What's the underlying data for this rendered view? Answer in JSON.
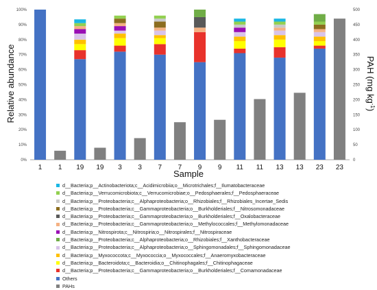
{
  "chart_data": {
    "type": "bar",
    "categories": [
      "1",
      "1",
      "19",
      "19",
      "3",
      "3",
      "7",
      "7",
      "9",
      "9",
      "11",
      "11",
      "13",
      "13",
      "23",
      "23"
    ],
    "xlabel": "Sample",
    "ylabel": "Relative  abundance",
    "y2label": "PAH (mg kg",
    "y2label_sup": "-1",
    "y2label_close": ")",
    "ylim": [
      0,
      100
    ],
    "y2lim": [
      0,
      500
    ],
    "yticks": [
      "0%",
      "10%",
      "20%",
      "30%",
      "40%",
      "50%",
      "60%",
      "70%",
      "80%",
      "90%",
      "100%"
    ],
    "y2ticks": [
      "0",
      "50",
      "100",
      "150",
      "200",
      "250",
      "300",
      "350",
      "400",
      "450",
      "500"
    ],
    "grid": false,
    "legend_position": "bottom",
    "stack_order_bottom_to_top": [
      "Others",
      "Comamonadaceae",
      "Chitinophagaceae",
      "Anaeromyxobacteraceae",
      "Sphingomonadaceae",
      "Nitrospiraceae",
      "Methylomonadaceae",
      "Oxalobacteraceae",
      "Nitrosomonadaceae",
      "Rhizobiales_Incertae_Sedis",
      "Pedosphaeraceae",
      "Ilumatobacteraceae",
      "Xanthobacteraceae"
    ],
    "series": [
      {
        "key": "Ilumatobacteraceae",
        "name": "d__Bacteria;p__Actinobacteriota;c__Acidimicrobiia;o__Microtrichales;f__Ilumatobacteraceae",
        "color": "#1BB7E4",
        "axis": "left",
        "values": [
          0,
          null,
          2.5,
          null,
          0,
          null,
          0,
          null,
          0,
          null,
          2.0,
          null,
          2.0,
          null,
          0,
          null
        ]
      },
      {
        "key": "Pedosphaeraceae",
        "name": "d__Bacteria;p__Verrucomicrobiota;c__Verrucomicrobiae;o__Pedosphaerales;f__Pedosphaeraceae",
        "color": "#92D050",
        "axis": "left",
        "values": [
          0,
          null,
          2.0,
          null,
          2.0,
          null,
          2.0,
          null,
          0,
          null,
          2.0,
          null,
          2.0,
          null,
          2.0,
          null
        ]
      },
      {
        "key": "Rhizobiales_Incertae_Sedis",
        "name": "d__Bacteria;p__Proteobacteria;c__Alphaproteobacteria;o__Rhizobiales;f__Rhizobiales_Incertae_Sedis",
        "color": "#C9C9C9",
        "axis": "left",
        "values": [
          0,
          null,
          0,
          null,
          0,
          null,
          2.0,
          null,
          0,
          null,
          2.0,
          null,
          2.0,
          null,
          0,
          null
        ]
      },
      {
        "key": "Nitrosomonadaceae",
        "name": "d__Bacteria;p__Proteobacteria;c__Gammaproteobacteria;o__Burkholderiales;f__Nitrosomonadaceae",
        "color": "#8C6D1F",
        "axis": "left",
        "values": [
          0,
          null,
          0,
          null,
          3.0,
          null,
          4.0,
          null,
          0,
          null,
          0,
          null,
          0,
          null,
          3.0,
          null
        ]
      },
      {
        "key": "Oxalobacteraceae",
        "name": "d__Bacteria;p__Proteobacteria;c__Gammaproteobacteria;o__Burkholderiales;f__Oxalobacteraceae",
        "color": "#595959",
        "axis": "left",
        "values": [
          0,
          null,
          0,
          null,
          0,
          null,
          0,
          null,
          7.0,
          null,
          0,
          null,
          0,
          null,
          0,
          null
        ]
      },
      {
        "key": "Methylomonadaceae",
        "name": "d__Bacteria;p__Proteobacteria;c__Gammaproteobacteria;o__Methylococcales;f__Methylomonadaceae",
        "color": "#F4B183",
        "axis": "left",
        "values": [
          0,
          null,
          2.0,
          null,
          2.0,
          null,
          2.0,
          null,
          3.0,
          null,
          0,
          null,
          2.0,
          null,
          2.0,
          null
        ]
      },
      {
        "key": "Nitrospiraceae",
        "name": "d__Bacteria;p__Nitrospirota;c__Nitrospiria;o__Nitrospirales;f__Nitrospiraceae",
        "color": "#9A0FB4",
        "axis": "left",
        "values": [
          0,
          null,
          3.0,
          null,
          3.0,
          null,
          0,
          null,
          0,
          null,
          3.0,
          null,
          0,
          null,
          0,
          null
        ]
      },
      {
        "key": "Xanthobacteraceae",
        "name": "d__Bacteria;p__Proteobacteria;c__Alphaproteobacteria;o__Rhizobiales;f__Xanthobacteraceae",
        "color": "#70AD47",
        "axis": "left",
        "values": [
          0,
          null,
          0,
          null,
          0,
          null,
          0,
          null,
          5.0,
          null,
          0,
          null,
          0,
          null,
          5.0,
          null
        ]
      },
      {
        "key": "Sphingomonadaceae",
        "name": "d__Bacteria;p__Proteobacteria;c__Alphaproteobacteria;o__Sphingomonadales;f__Sphingomonadaceae",
        "color": "#D9C3E9",
        "axis": "left",
        "values": [
          0,
          null,
          4.0,
          null,
          2.0,
          null,
          3.0,
          null,
          0,
          null,
          3.0,
          null,
          3.0,
          null,
          3.0,
          null
        ]
      },
      {
        "key": "Anaeromyxobacteraceae",
        "name": "d__Bacteria;p__Myxococcota;c__Myxococcia;o__Myxococcales;f__Anaeromyxobacteraceae",
        "color": "#FFC000",
        "axis": "left",
        "values": [
          0,
          null,
          3.0,
          null,
          3.0,
          null,
          2.0,
          null,
          0,
          null,
          3.0,
          null,
          3.0,
          null,
          3.0,
          null
        ]
      },
      {
        "key": "Chitinophagaceae",
        "name": "d__Bacteria;p__Bacteroidota;c__Bacteroidia;o__Chitinophagales;f__Chitinophagaceae",
        "color": "#FFFF00",
        "axis": "left",
        "values": [
          0,
          null,
          4.0,
          null,
          5.0,
          null,
          4.0,
          null,
          0,
          null,
          5.0,
          null,
          5.0,
          null,
          3.0,
          null
        ]
      },
      {
        "key": "Comamonadaceae",
        "name": "d__Bacteria;p__Proteobacteria;c__Gammaproteobacteria;o__Burkholderiales;f__Comamonadaceae",
        "color": "#E8322B",
        "axis": "left",
        "values": [
          0,
          null,
          6.0,
          null,
          4.0,
          null,
          7.0,
          null,
          20.0,
          null,
          3.0,
          null,
          7.0,
          null,
          2.0,
          null
        ]
      },
      {
        "key": "Others",
        "name": "Others",
        "color": "#4472C4",
        "axis": "left",
        "values": [
          100,
          null,
          67.0,
          null,
          72.0,
          null,
          70.0,
          null,
          65.0,
          null,
          71.0,
          null,
          68.0,
          null,
          74.0,
          null
        ]
      },
      {
        "key": "PAHs",
        "name": "PAHs",
        "color": "#808080",
        "axis": "right",
        "values": [
          null,
          30,
          null,
          40,
          null,
          72,
          null,
          125,
          null,
          133,
          null,
          202,
          null,
          223,
          null,
          470
        ]
      }
    ],
    "legend_order": [
      "Ilumatobacteraceae",
      "Pedosphaeraceae",
      "Rhizobiales_Incertae_Sedis",
      "Nitrosomonadaceae",
      "Oxalobacteraceae",
      "Methylomonadaceae",
      "Nitrospiraceae",
      "Xanthobacteraceae",
      "Sphingomonadaceae",
      "Anaeromyxobacteraceae",
      "Chitinophagaceae",
      "Comamonadaceae",
      "Others",
      "PAHs"
    ]
  }
}
